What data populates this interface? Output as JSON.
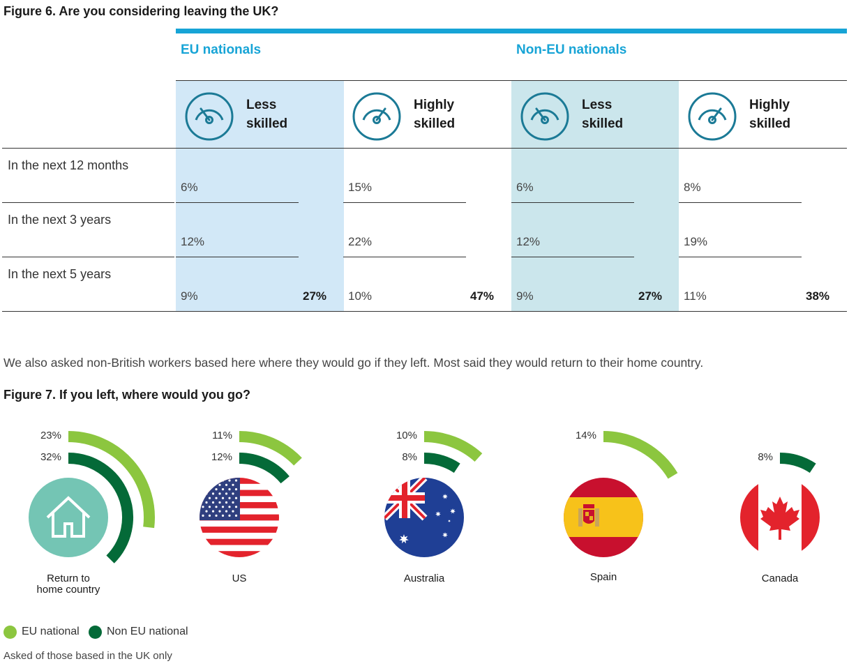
{
  "fig6": {
    "title": "Figure 6. Are you considering leaving the UK?",
    "groups": [
      {
        "label": "EU nationals"
      },
      {
        "label": "Non-EU nationals"
      }
    ],
    "columns": [
      {
        "label": "Less\nskilled",
        "icon": "gauge-low-icon",
        "values": [
          "6%",
          "12%",
          "9%"
        ],
        "total": "27%"
      },
      {
        "label": "Highly\nskilled",
        "icon": "gauge-high-icon",
        "values": [
          "15%",
          "22%",
          "10%"
        ],
        "total": "47%"
      },
      {
        "label": "Less\nskilled",
        "icon": "gauge-low-icon",
        "values": [
          "6%",
          "12%",
          "9%"
        ],
        "total": "27%"
      },
      {
        "label": "Highly\nskilled",
        "icon": "gauge-high-icon",
        "values": [
          "8%",
          "19%",
          "11%"
        ],
        "total": "38%"
      }
    ],
    "rows": [
      "In the next 12 months",
      "In the next 3 years",
      "In the next 5 years"
    ],
    "colors": {
      "accent": "#17a4d6",
      "eu_col_bg": "#d2e8f7",
      "noneu_col_bg": "#cbe6ec",
      "icon": "#1b7a96"
    }
  },
  "intro_text": "We also asked non-British workers based here where they would go if they left. Most said they would return to their home country.",
  "fig7": {
    "title": "Figure 7. If you left, where would you go?",
    "legend": [
      {
        "label": "EU national",
        "color": "#8cc63f"
      },
      {
        "label": "Non EU national",
        "color": "#046a38"
      }
    ],
    "footnote": "Asked of those based in the UK only"
  },
  "chart_data": {
    "type": "radial-bar",
    "title": "Figure 7. If you left, where would you go?",
    "series": [
      {
        "name": "EU national",
        "color": "#8cc63f"
      },
      {
        "name": "Non EU national",
        "color": "#046a38"
      }
    ],
    "categories": [
      {
        "label": "Return to\nhome country",
        "icon": "home-icon",
        "eu": 23,
        "eu_label": "23%",
        "non_eu": 32,
        "non_eu_label": "32%"
      },
      {
        "label": "US",
        "icon": "us-flag-icon",
        "eu": 11,
        "eu_label": "11%",
        "non_eu": 12,
        "non_eu_label": "12%"
      },
      {
        "label": "Australia",
        "icon": "australia-flag-icon",
        "eu": 10,
        "eu_label": "10%",
        "non_eu": 8,
        "non_eu_label": "8%"
      },
      {
        "label": "Spain",
        "icon": "spain-flag-icon",
        "eu": 14,
        "eu_label": "14%",
        "non_eu": null,
        "non_eu_label": ""
      },
      {
        "label": "Canada",
        "icon": "canada-flag-icon",
        "eu": null,
        "eu_label": "",
        "non_eu": 8,
        "non_eu_label": "8%"
      }
    ]
  }
}
